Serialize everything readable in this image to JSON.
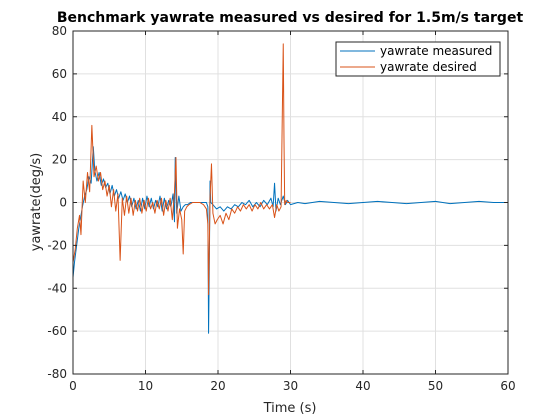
{
  "chart_data": {
    "type": "line",
    "title": "Benchmark yawrate measured vs desired for 1.5m/s target",
    "xlabel": "Time (s)",
    "ylabel": "yawrate(deg/s)",
    "xlim": [
      0,
      60
    ],
    "ylim": [
      -80,
      80
    ],
    "xticks": [
      0,
      10,
      20,
      30,
      40,
      50,
      60
    ],
    "yticks": [
      -80,
      -60,
      -40,
      -20,
      0,
      20,
      40,
      60,
      80
    ],
    "grid": true,
    "legend_position": "top-right",
    "series": [
      {
        "name": "yawrate measured",
        "color": "#0072BD",
        "points": [
          [
            0,
            -35
          ],
          [
            0.2,
            -28
          ],
          [
            0.5,
            -20
          ],
          [
            0.8,
            -12
          ],
          [
            1.0,
            -8
          ],
          [
            1.3,
            -2
          ],
          [
            1.6,
            3
          ],
          [
            1.9,
            6
          ],
          [
            2.2,
            12
          ],
          [
            2.5,
            9
          ],
          [
            2.8,
            26
          ],
          [
            3.0,
            15
          ],
          [
            3.3,
            10
          ],
          [
            3.6,
            14
          ],
          [
            3.9,
            8
          ],
          [
            4.2,
            11
          ],
          [
            4.5,
            7
          ],
          [
            4.8,
            9
          ],
          [
            5.1,
            4
          ],
          [
            5.4,
            8
          ],
          [
            5.7,
            3
          ],
          [
            6.0,
            6
          ],
          [
            6.3,
            2
          ],
          [
            6.6,
            5
          ],
          [
            6.9,
            1
          ],
          [
            7.2,
            4
          ],
          [
            7.5,
            0
          ],
          [
            7.8,
            3
          ],
          [
            8.1,
            -2
          ],
          [
            8.4,
            2
          ],
          [
            8.7,
            -3
          ],
          [
            9.0,
            1
          ],
          [
            9.3,
            -4
          ],
          [
            9.6,
            2
          ],
          [
            9.9,
            -3
          ],
          [
            10.2,
            3
          ],
          [
            10.5,
            -2
          ],
          [
            10.8,
            2
          ],
          [
            11.1,
            -3
          ],
          [
            11.4,
            1
          ],
          [
            11.7,
            -2
          ],
          [
            12.0,
            3
          ],
          [
            12.3,
            -4
          ],
          [
            12.6,
            2
          ],
          [
            12.9,
            -3
          ],
          [
            13.2,
            1
          ],
          [
            13.5,
            -2
          ],
          [
            13.8,
            4
          ],
          [
            14.0,
            -9
          ],
          [
            14.1,
            21
          ],
          [
            14.3,
            -5
          ],
          [
            14.6,
            3
          ],
          [
            14.9,
            -4
          ],
          [
            15.2,
            -2
          ],
          [
            15.5,
            -1
          ],
          [
            15.8,
            -1
          ],
          [
            16.2,
            0
          ],
          [
            17.0,
            0
          ],
          [
            17.8,
            0
          ],
          [
            18.4,
            0
          ],
          [
            18.6,
            -2
          ],
          [
            18.7,
            -61
          ],
          [
            18.8,
            -30
          ],
          [
            18.9,
            10
          ],
          [
            19.0,
            0
          ],
          [
            19.3,
            -1
          ],
          [
            19.8,
            -3
          ],
          [
            20.3,
            -2
          ],
          [
            20.8,
            -4
          ],
          [
            21.3,
            -2
          ],
          [
            21.8,
            -3
          ],
          [
            22.3,
            -1
          ],
          [
            22.8,
            -2
          ],
          [
            23.3,
            0
          ],
          [
            23.8,
            -1
          ],
          [
            24.3,
            1
          ],
          [
            24.8,
            -2
          ],
          [
            25.3,
            0
          ],
          [
            25.8,
            -2
          ],
          [
            26.3,
            1
          ],
          [
            26.8,
            -1
          ],
          [
            27.3,
            2
          ],
          [
            27.6,
            -2
          ],
          [
            27.8,
            9
          ],
          [
            28.0,
            -4
          ],
          [
            28.3,
            2
          ],
          [
            28.6,
            -1
          ],
          [
            29.0,
            3
          ],
          [
            29.3,
            -1
          ],
          [
            29.6,
            1
          ],
          [
            30.0,
            -1
          ],
          [
            31,
            0
          ],
          [
            32,
            -0.5
          ],
          [
            34,
            0.5
          ],
          [
            36,
            0
          ],
          [
            38,
            -0.5
          ],
          [
            40,
            0
          ],
          [
            42,
            0.5
          ],
          [
            44,
            0
          ],
          [
            46,
            -0.5
          ],
          [
            48,
            0
          ],
          [
            50,
            0.5
          ],
          [
            52,
            -0.5
          ],
          [
            54,
            0
          ],
          [
            56,
            0.5
          ],
          [
            58,
            0
          ],
          [
            60,
            0
          ]
        ]
      },
      {
        "name": "yawrate desired",
        "color": "#D95319",
        "points": [
          [
            0,
            -28
          ],
          [
            0.3,
            -22
          ],
          [
            0.6,
            -12
          ],
          [
            0.9,
            -6
          ],
          [
            1.1,
            -15
          ],
          [
            1.4,
            10
          ],
          [
            1.7,
            0
          ],
          [
            2.0,
            14
          ],
          [
            2.3,
            5
          ],
          [
            2.6,
            36
          ],
          [
            2.9,
            12
          ],
          [
            3.2,
            17
          ],
          [
            3.5,
            10
          ],
          [
            3.8,
            14
          ],
          [
            4.1,
            6
          ],
          [
            4.4,
            10
          ],
          [
            4.7,
            3
          ],
          [
            5.0,
            8
          ],
          [
            5.3,
            -2
          ],
          [
            5.6,
            6
          ],
          [
            5.9,
            -4
          ],
          [
            6.2,
            4
          ],
          [
            6.5,
            -27
          ],
          [
            6.8,
            2
          ],
          [
            7.1,
            -6
          ],
          [
            7.4,
            3
          ],
          [
            7.7,
            -5
          ],
          [
            8.0,
            2
          ],
          [
            8.3,
            -6
          ],
          [
            8.6,
            1
          ],
          [
            8.9,
            -4
          ],
          [
            9.2,
            2
          ],
          [
            9.5,
            -5
          ],
          [
            9.8,
            1
          ],
          [
            10.1,
            -4
          ],
          [
            10.4,
            2
          ],
          [
            10.7,
            -3
          ],
          [
            11.0,
            0
          ],
          [
            11.3,
            -5
          ],
          [
            11.6,
            1
          ],
          [
            11.9,
            -3
          ],
          [
            12.2,
            2
          ],
          [
            12.5,
            -6
          ],
          [
            12.8,
            1
          ],
          [
            13.1,
            -4
          ],
          [
            13.4,
            2
          ],
          [
            13.7,
            -8
          ],
          [
            14.0,
            5
          ],
          [
            14.2,
            21
          ],
          [
            14.4,
            -12
          ],
          [
            14.7,
            -3
          ],
          [
            15.0,
            -8
          ],
          [
            15.2,
            -24
          ],
          [
            15.4,
            -4
          ],
          [
            15.7,
            -2
          ],
          [
            16.0,
            -1
          ],
          [
            16.5,
            0
          ],
          [
            17.0,
            0
          ],
          [
            17.5,
            0
          ],
          [
            18.0,
            -1
          ],
          [
            18.4,
            -3
          ],
          [
            18.6,
            -10
          ],
          [
            18.7,
            -43
          ],
          [
            18.8,
            -20
          ],
          [
            18.9,
            2
          ],
          [
            19.1,
            18
          ],
          [
            19.3,
            -5
          ],
          [
            19.6,
            -10
          ],
          [
            19.9,
            -8
          ],
          [
            20.3,
            -6
          ],
          [
            20.7,
            -10
          ],
          [
            21.1,
            -5
          ],
          [
            21.5,
            -8
          ],
          [
            21.9,
            -3
          ],
          [
            22.3,
            -5
          ],
          [
            22.7,
            -2
          ],
          [
            23.1,
            -4
          ],
          [
            23.5,
            -1
          ],
          [
            23.9,
            -3
          ],
          [
            24.3,
            -1
          ],
          [
            24.7,
            -4
          ],
          [
            25.1,
            -1
          ],
          [
            25.5,
            -3
          ],
          [
            25.9,
            0
          ],
          [
            26.3,
            -3
          ],
          [
            26.7,
            -1
          ],
          [
            27.1,
            -3
          ],
          [
            27.5,
            -1
          ],
          [
            27.8,
            -7
          ],
          [
            28.1,
            -1
          ],
          [
            28.4,
            -4
          ],
          [
            28.7,
            -2
          ],
          [
            29.0,
            74
          ],
          [
            29.1,
            30
          ],
          [
            29.2,
            -1
          ],
          [
            29.4,
            1
          ],
          [
            29.6,
            0
          ],
          [
            30.0,
            0
          ]
        ]
      }
    ]
  }
}
